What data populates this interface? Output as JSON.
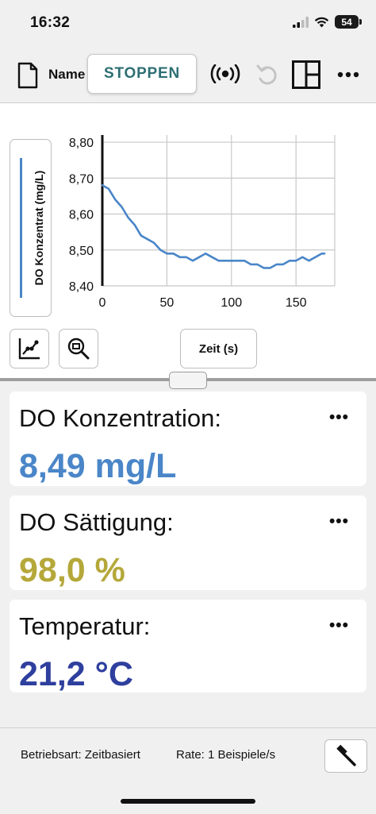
{
  "status_bar": {
    "time": "16:32",
    "battery": "54",
    "icons": [
      "cellular-signal-icon",
      "wifi-icon",
      "battery-icon"
    ]
  },
  "toolbar": {
    "file_name_label": "Name",
    "stop_label": "STOPPEN",
    "icons": [
      "file-icon",
      "sensor-broadcast-icon",
      "undo-icon",
      "layout-icon",
      "more-icon"
    ],
    "accent_color": "#2e6f73"
  },
  "graph": {
    "y_axis_label": "DO Konzentrat (mg/L)",
    "x_axis_label": "Zeit (s)",
    "line_color": "#4a86c8"
  },
  "chart_data": {
    "type": "line",
    "ylabel": "DO Konzentrat (mg/L)",
    "xlabel": "Zeit (s)",
    "xlim": [
      0,
      180
    ],
    "ylim": [
      8.4,
      8.82
    ],
    "x_ticks": [
      0,
      50,
      100,
      150
    ],
    "x_tick_labels": [
      "0",
      "50",
      "100",
      "150"
    ],
    "y_ticks": [
      8.4,
      8.5,
      8.6,
      8.7,
      8.8
    ],
    "y_tick_labels": [
      "8,40",
      "8,50",
      "8,60",
      "8,70",
      "8,80"
    ],
    "grid": true,
    "series": [
      {
        "x": [
          0,
          5,
          10,
          15,
          20,
          25,
          30,
          35,
          40,
          45,
          50,
          55,
          60,
          65,
          70,
          75,
          80,
          85,
          90,
          95,
          100,
          105,
          110,
          115,
          120,
          125,
          130,
          135,
          140,
          145,
          150,
          155,
          160,
          165,
          170,
          172
        ],
        "y": [
          8.68,
          8.67,
          8.64,
          8.62,
          8.59,
          8.57,
          8.54,
          8.53,
          8.52,
          8.5,
          8.49,
          8.49,
          8.48,
          8.48,
          8.47,
          8.48,
          8.49,
          8.48,
          8.47,
          8.47,
          8.47,
          8.47,
          8.47,
          8.46,
          8.46,
          8.45,
          8.45,
          8.46,
          8.46,
          8.47,
          8.47,
          8.48,
          8.47,
          8.48,
          8.49,
          8.49
        ]
      }
    ]
  },
  "meters": [
    {
      "title": "DO Konzentration:",
      "value": "8,49 mg/L",
      "color": "#4a86c8"
    },
    {
      "title": "DO Sättigung:",
      "value": "98,0 %",
      "color": "#b5a83a"
    },
    {
      "title": "Temperatur:",
      "value": "21,2 °C",
      "color": "#2e3f9e"
    }
  ],
  "more_glyph": "•••",
  "footer": {
    "mode": "Betriebsart: Zeitbasiert",
    "rate": "Rate: 1 Beispiele/s"
  }
}
